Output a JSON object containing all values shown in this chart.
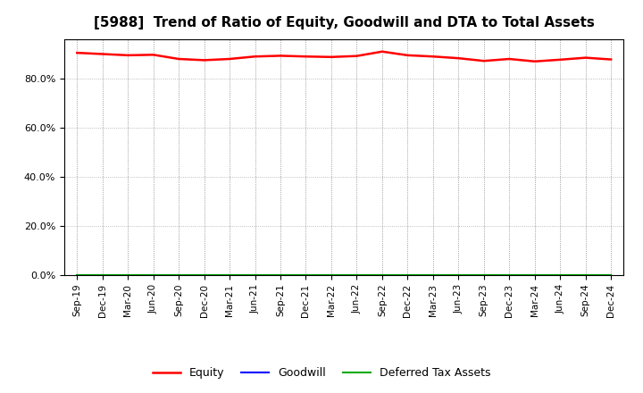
{
  "title": "[5988]  Trend of Ratio of Equity, Goodwill and DTA to Total Assets",
  "x_labels": [
    "Sep-19",
    "Dec-19",
    "Mar-20",
    "Jun-20",
    "Sep-20",
    "Dec-20",
    "Mar-21",
    "Jun-21",
    "Sep-21",
    "Dec-21",
    "Mar-22",
    "Jun-22",
    "Sep-22",
    "Dec-22",
    "Mar-23",
    "Jun-23",
    "Sep-23",
    "Dec-23",
    "Mar-24",
    "Jun-24",
    "Sep-24",
    "Dec-24"
  ],
  "equity": [
    0.905,
    0.9,
    0.895,
    0.897,
    0.88,
    0.875,
    0.88,
    0.89,
    0.893,
    0.89,
    0.888,
    0.892,
    0.91,
    0.895,
    0.89,
    0.883,
    0.872,
    0.88,
    0.87,
    0.877,
    0.885,
    0.878
  ],
  "goodwill": [
    0.0,
    0.0,
    0.0,
    0.0,
    0.0,
    0.0,
    0.0,
    0.0,
    0.0,
    0.0,
    0.0,
    0.0,
    0.0,
    0.0,
    0.0,
    0.0,
    0.0,
    0.0,
    0.0,
    0.0,
    0.0,
    0.0
  ],
  "dta": [
    0.0,
    0.0,
    0.0,
    0.0,
    0.0,
    0.0,
    0.0,
    0.0,
    0.0,
    0.0,
    0.0,
    0.0,
    0.0,
    0.0,
    0.0,
    0.0,
    0.0,
    0.0,
    0.0,
    0.0,
    0.0,
    0.0
  ],
  "equity_color": "#FF0000",
  "goodwill_color": "#0000FF",
  "dta_color": "#00AA00",
  "ylim": [
    0.0,
    0.96
  ],
  "yticks": [
    0.0,
    0.2,
    0.4,
    0.6,
    0.8
  ],
  "ytick_labels": [
    "0.0%",
    "20.0%",
    "40.0%",
    "60.0%",
    "80.0%"
  ],
  "background_color": "#FFFFFF",
  "grid_color": "#AAAAAA",
  "legend_equity": "Equity",
  "legend_goodwill": "Goodwill",
  "legend_dta": "Deferred Tax Assets"
}
